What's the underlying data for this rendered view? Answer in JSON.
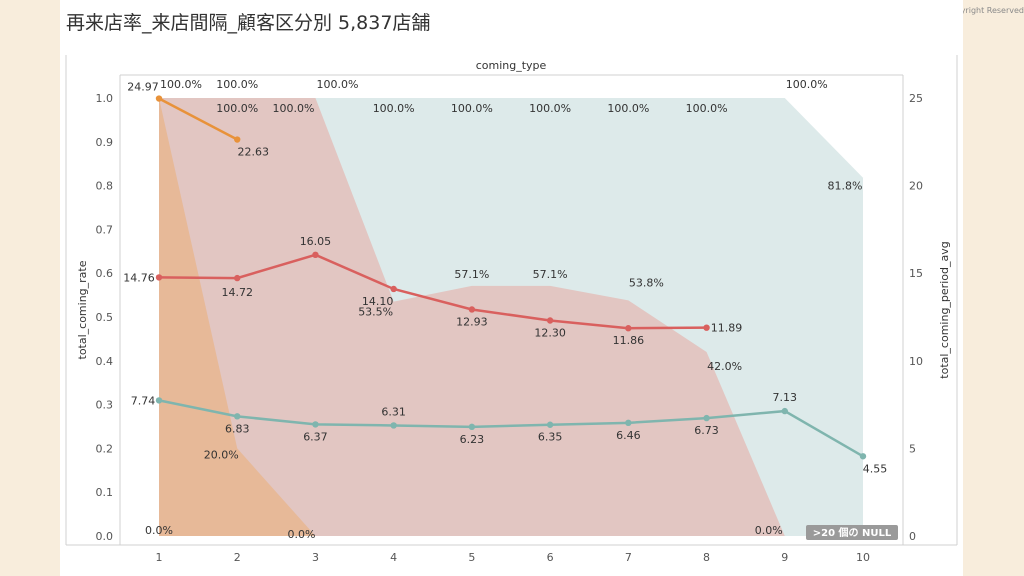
{
  "page": {
    "title": "再来店率_来店間隔_顧客区分別 5,837店舗",
    "copyright": "All Copyright Reserved",
    "null_badge": ">20 個の NULL"
  },
  "colors": {
    "orange": "#e8923a",
    "red": "#d9605e",
    "teal": "#7fb5ae",
    "area_orange": "#e8b48a",
    "area_red": "#e3b9b4",
    "area_teal": "#d2e3e3"
  },
  "chart_data": {
    "type": "line",
    "title": "coming_type",
    "xlabel": "",
    "ylabel": "total_coming_rate",
    "y2label": "total_coming_period_avg",
    "categories": [
      "1",
      "2",
      "3",
      "4",
      "5",
      "6",
      "7",
      "8",
      "9",
      "10"
    ],
    "x": [
      1,
      2,
      3,
      4,
      5,
      6,
      7,
      8,
      9,
      10
    ],
    "ylim": [
      0,
      1.0
    ],
    "y2lim": [
      0,
      25
    ],
    "yticks": [
      "0.0",
      "0.1",
      "0.2",
      "0.3",
      "0.4",
      "0.5",
      "0.6",
      "0.7",
      "0.8",
      "0.9",
      "1.0"
    ],
    "y2ticks": [
      "0",
      "5",
      "10",
      "15",
      "20",
      "25"
    ],
    "grid": false,
    "area_series": [
      {
        "color": "area_teal",
        "points": [
          [
            1,
            1.0
          ],
          [
            2,
            1.0
          ],
          [
            3,
            1.0
          ],
          [
            4,
            1.0
          ],
          [
            5,
            1.0
          ],
          [
            6,
            1.0
          ],
          [
            7,
            1.0
          ],
          [
            8,
            1.0
          ],
          [
            9,
            1.0
          ],
          [
            10,
            0.818
          ]
        ],
        "labels": [
          {
            "x": 3,
            "y": 1.0,
            "text": "100.0%"
          },
          {
            "x": 9,
            "y": 1.0,
            "text": "100.0%"
          },
          {
            "x": 10,
            "y": 0.818,
            "text": "81.8%"
          }
        ]
      },
      {
        "color": "area_red",
        "points": [
          [
            1,
            1.0
          ],
          [
            2,
            1.0
          ],
          [
            3,
            1.0
          ],
          [
            4,
            0.535
          ],
          [
            5,
            0.571
          ],
          [
            6,
            0.571
          ],
          [
            7,
            0.538
          ],
          [
            8,
            0.42
          ],
          [
            9,
            0.0
          ]
        ],
        "labels": [
          {
            "x": 2,
            "y": 1.0,
            "text": "100.0%"
          },
          {
            "x": 3,
            "y": 1.0,
            "text": "100.0%"
          },
          {
            "x": 4,
            "y": 1.0,
            "text": "100.0%"
          },
          {
            "x": 5,
            "y": 1.0,
            "text": "100.0%"
          },
          {
            "x": 6,
            "y": 1.0,
            "text": "100.0%"
          },
          {
            "x": 7,
            "y": 1.0,
            "text": "100.0%"
          },
          {
            "x": 8,
            "y": 1.0,
            "text": "100.0%"
          },
          {
            "x": 4,
            "y": 0.535,
            "text": "53.5%"
          },
          {
            "x": 5,
            "y": 0.571,
            "text": "57.1%"
          },
          {
            "x": 6,
            "y": 0.571,
            "text": "57.1%"
          },
          {
            "x": 7,
            "y": 0.538,
            "text": "53.8%"
          },
          {
            "x": 8,
            "y": 0.42,
            "text": "42.0%"
          },
          {
            "x": 9,
            "y": 0.0,
            "text": "0.0%"
          }
        ]
      },
      {
        "color": "area_orange",
        "points": [
          [
            1,
            1.0
          ],
          [
            2,
            0.2
          ],
          [
            3,
            0.0
          ]
        ],
        "labels": [
          {
            "x": 1,
            "y": 1.0,
            "text": "100.0%"
          },
          {
            "x": 2,
            "y": 1.0,
            "text": "100.0%"
          },
          {
            "x": 2,
            "y": 0.2,
            "text": "20.0%"
          },
          {
            "x": 3,
            "y": 0.0,
            "text": "0.0%"
          },
          {
            "x": 1,
            "y": 0.0,
            "text": "0.0%"
          }
        ]
      }
    ],
    "series": [
      {
        "color": "orange",
        "axis": "right",
        "x": [
          1,
          2
        ],
        "values": [
          24.97,
          22.63
        ],
        "labels": [
          "24.97",
          "22.63"
        ]
      },
      {
        "color": "red",
        "axis": "right",
        "x": [
          1,
          2,
          3,
          4,
          5,
          6,
          7,
          8
        ],
        "values": [
          14.76,
          14.72,
          16.05,
          14.1,
          12.93,
          12.3,
          11.86,
          11.89
        ],
        "labels": [
          "14.76",
          "14.72",
          "16.05",
          "14.10",
          "12.93",
          "12.30",
          "11.86",
          "11.89"
        ]
      },
      {
        "color": "teal",
        "axis": "right",
        "x": [
          1,
          2,
          3,
          4,
          5,
          6,
          7,
          8,
          9,
          10
        ],
        "values": [
          7.74,
          6.83,
          6.37,
          6.31,
          6.23,
          6.35,
          6.46,
          6.73,
          7.13,
          4.55
        ],
        "labels": [
          "7.74",
          "6.83",
          "6.37",
          "6.31",
          "6.23",
          "6.35",
          "6.46",
          "6.73",
          "7.13",
          "4.55"
        ]
      }
    ]
  }
}
